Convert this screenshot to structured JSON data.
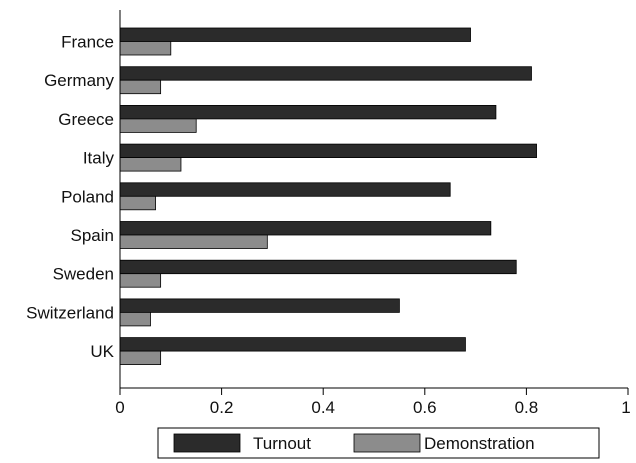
{
  "chart_data": {
    "type": "bar",
    "orientation": "horizontal",
    "categories": [
      "France",
      "Germany",
      "Greece",
      "Italy",
      "Poland",
      "Spain",
      "Sweden",
      "Switzerland",
      "UK"
    ],
    "series": [
      {
        "name": "Turnout",
        "color": "#2b2b2b",
        "values": [
          0.69,
          0.81,
          0.74,
          0.82,
          0.65,
          0.73,
          0.78,
          0.55,
          0.68
        ]
      },
      {
        "name": "Demonstration",
        "color": "#8c8c8c",
        "values": [
          0.1,
          0.08,
          0.15,
          0.12,
          0.07,
          0.29,
          0.08,
          0.06,
          0.08
        ]
      }
    ],
    "xlim": [
      0,
      1
    ],
    "xticks": [
      "0",
      "0.2",
      "0.4",
      "0.6",
      "0.8",
      "1"
    ],
    "xlabel": "",
    "ylabel": "",
    "title": "",
    "grid": false,
    "legend_position": "bottom"
  }
}
